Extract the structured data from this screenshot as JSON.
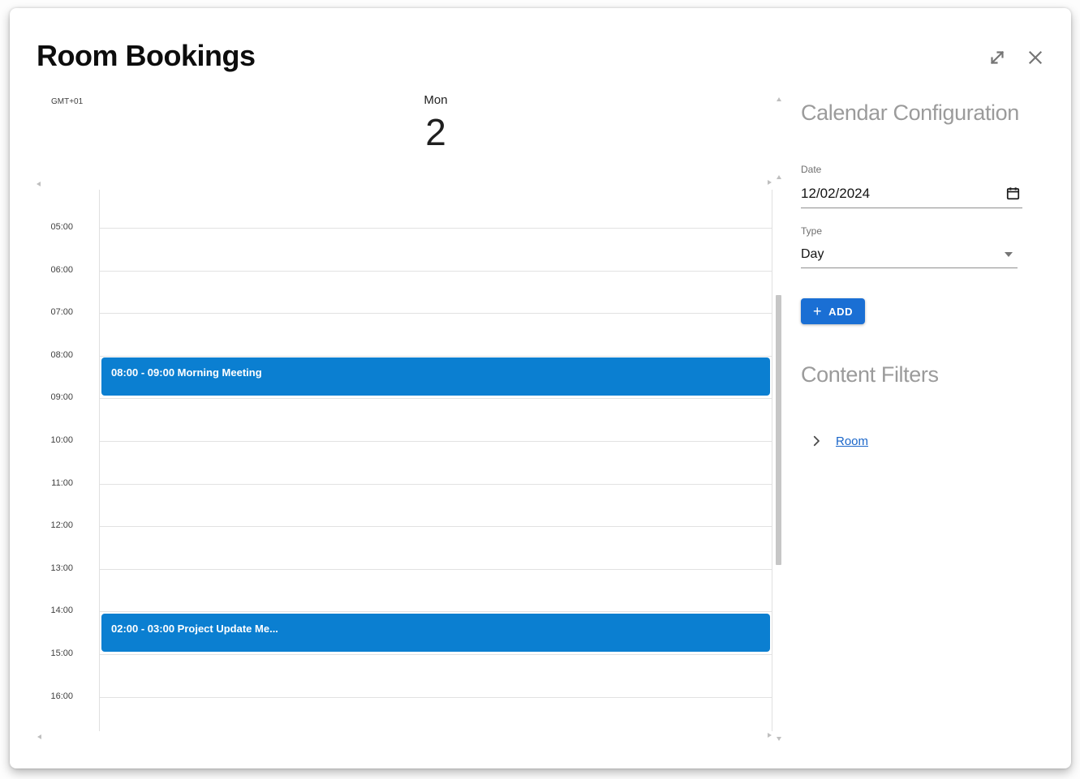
{
  "dialog": {
    "title": "Room Bookings"
  },
  "calendar": {
    "timezone_label": "GMT+01",
    "day_name": "Mon",
    "day_number": "2",
    "hours": [
      "05:00",
      "06:00",
      "07:00",
      "08:00",
      "09:00",
      "10:00",
      "11:00",
      "12:00",
      "13:00",
      "14:00",
      "15:00",
      "16:00"
    ],
    "events": [
      {
        "label": "08:00 - 09:00 Morning Meeting",
        "row": 3
      },
      {
        "label": "02:00 - 03:00 Project Update Me...",
        "row": 9
      }
    ]
  },
  "config_panel": {
    "title": "Calendar Configuration",
    "date_label": "Date",
    "date_value": "12/02/2024",
    "type_label": "Type",
    "type_value": "Day",
    "add_button_plus": "+",
    "add_button_label": "ADD"
  },
  "filters_panel": {
    "title": "Content Filters",
    "items": [
      {
        "label": "Room"
      }
    ]
  },
  "icons": {
    "expand": "diagonal-expand-arrow",
    "close": "x-mark",
    "date_picker": "calendar",
    "type_dropdown": "caret-down",
    "filter_expand": "chevron-right"
  },
  "colors": {
    "event_blue": "#0b7fd1",
    "button_blue": "#1a6fd4",
    "link_blue": "#1a66c9"
  }
}
